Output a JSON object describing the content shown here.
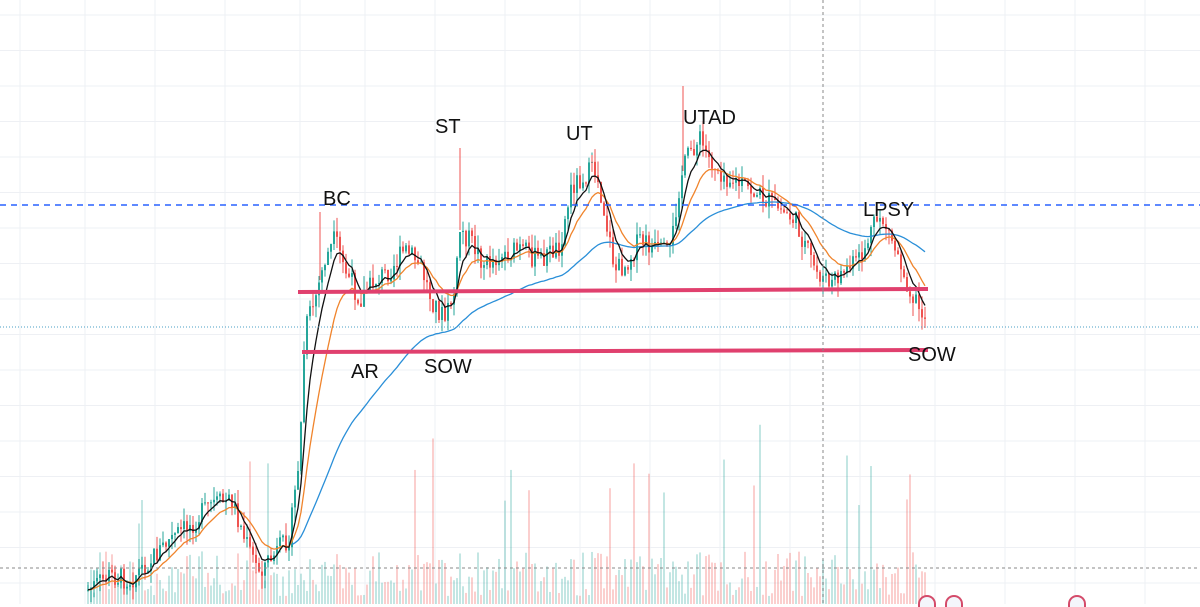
{
  "chart_data": {
    "type": "candlestick",
    "title": "",
    "xlabel": "",
    "ylabel": "",
    "grid": true,
    "colors": {
      "up": "#26a69a",
      "down": "#ef5350",
      "ema_fast": "#111111",
      "ema_mid": "#f0842c",
      "ema_slow": "#2a8fd8",
      "range_line": "#e0406e",
      "reference_line": "#2962ff",
      "crosshair": "#888888"
    },
    "annotations": [
      {
        "label": "BC"
      },
      {
        "label": "AR"
      },
      {
        "label": "ST"
      },
      {
        "label": "SOW"
      },
      {
        "label": "UT"
      },
      {
        "label": "UTAD"
      },
      {
        "label": "LPSY"
      },
      {
        "label": "SOW"
      }
    ],
    "icons": [
      "event-flag-icon",
      "event-flag-icon",
      "event-flag-icon"
    ]
  }
}
